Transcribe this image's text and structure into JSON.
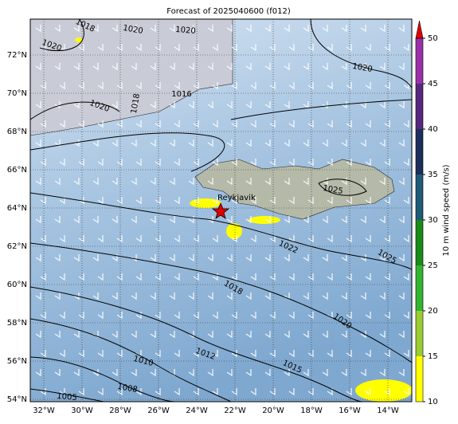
{
  "title": "Forecast of 2025040600 (f012)",
  "lat_labels": [
    "72°N",
    "70°N",
    "68°N",
    "66°N",
    "64°N",
    "62°N",
    "60°N",
    "58°N",
    "56°N",
    "54°N"
  ],
  "lon_labels": [
    "32°W",
    "30°W",
    "28°W",
    "26°W",
    "24°W",
    "22°W",
    "20°W",
    "18°W",
    "16°W",
    "14°W"
  ],
  "place": "Reykjavik",
  "contour_labels": [
    1018,
    1020,
    1020,
    1020,
    1016,
    1018,
    1020,
    1020,
    1025,
    1025,
    1022,
    1018,
    1020,
    1015,
    1012,
    1010,
    1008,
    1005
  ],
  "colorbar": {
    "label": "10 m wind speed (m/s)",
    "lim": [
      10,
      50
    ],
    "ticks": [
      10,
      15,
      20,
      25,
      30,
      35,
      40,
      45,
      50
    ],
    "colors": [
      "#ffff00",
      "#9acd32",
      "#32b432",
      "#1a8a1a",
      "#1f5a78",
      "#1c2e5c",
      "#55287e",
      "#9a30a8"
    ],
    "extend_color": "#e00000"
  }
}
